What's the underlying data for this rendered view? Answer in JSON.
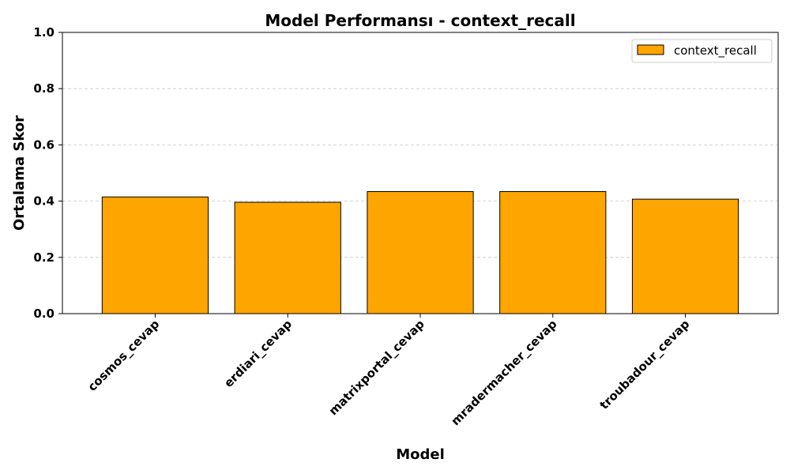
{
  "chart_data": {
    "type": "bar",
    "title": "Model Performansı - context_recall",
    "xlabel": "Model",
    "ylabel": "Ortalama Skor",
    "categories": [
      "cosmos_cevap",
      "erdiari_cevap",
      "matrixportal_cevap",
      "mradermacher_cevap",
      "troubadour_cevap"
    ],
    "series": [
      {
        "name": "context_recall",
        "values": [
          0.415,
          0.396,
          0.434,
          0.434,
          0.407
        ]
      }
    ],
    "ylim": [
      0,
      1.0
    ],
    "yticks": [
      "0.0",
      "0.2",
      "0.4",
      "0.6",
      "0.8",
      "1.0"
    ],
    "grid": "y-dashed",
    "legend_position": "top-right",
    "colors": {
      "bar": "#FFA500",
      "edge": "#000000",
      "grid": "#c8c8c8"
    }
  }
}
